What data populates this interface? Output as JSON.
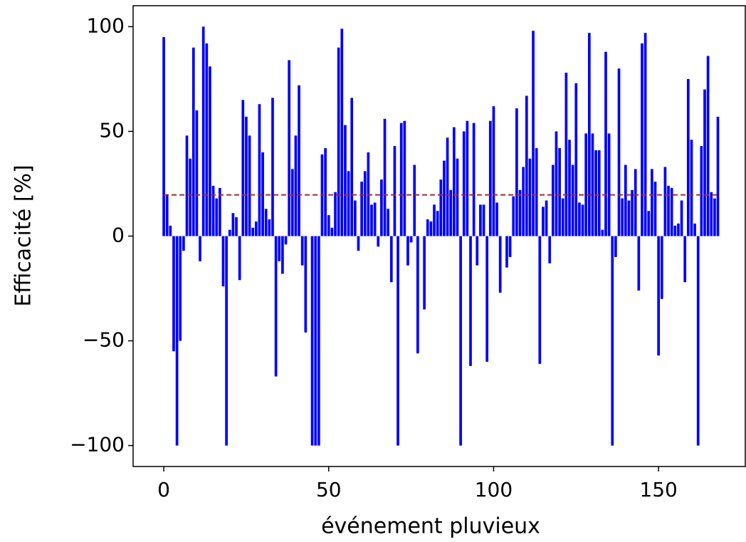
{
  "chart_data": {
    "type": "bar",
    "x": [
      0,
      1,
      2,
      3,
      4,
      5,
      6,
      7,
      8,
      9,
      10,
      11,
      12,
      13,
      14,
      15,
      16,
      17,
      18,
      19,
      20,
      21,
      22,
      23,
      24,
      25,
      26,
      27,
      28,
      29,
      30,
      31,
      32,
      33,
      34,
      35,
      36,
      37,
      38,
      39,
      40,
      41,
      42,
      43,
      44,
      45,
      46,
      47,
      48,
      49,
      50,
      51,
      52,
      53,
      54,
      55,
      56,
      57,
      58,
      59,
      60,
      61,
      62,
      63,
      64,
      65,
      66,
      67,
      68,
      69,
      70,
      71,
      72,
      73,
      74,
      75,
      76,
      77,
      78,
      79,
      80,
      81,
      82,
      83,
      84,
      85,
      86,
      87,
      88,
      89,
      90,
      91,
      92,
      93,
      94,
      95,
      96,
      97,
      98,
      99,
      100,
      101,
      102,
      103,
      104,
      105,
      106,
      107,
      108,
      109,
      110,
      111,
      112,
      113,
      114,
      115,
      116,
      117,
      118,
      119,
      120,
      121,
      122,
      123,
      124,
      125,
      126,
      127,
      128,
      129,
      130,
      131,
      132,
      133,
      134,
      135,
      136,
      137,
      138,
      139,
      140,
      141,
      142,
      143,
      144,
      145,
      146,
      147,
      148,
      149,
      150,
      151,
      152,
      153,
      154,
      155,
      156,
      157,
      158,
      159,
      160,
      161,
      162,
      163,
      164,
      165,
      166,
      167,
      168
    ],
    "values": [
      95,
      20,
      5,
      -55,
      -100,
      -50,
      -7,
      48,
      37,
      90,
      60,
      -12,
      100,
      92,
      81,
      24,
      18,
      23,
      -24,
      -100,
      3,
      11,
      9,
      -21,
      65,
      57,
      48,
      4,
      7,
      63,
      40,
      13,
      8,
      66,
      -67,
      -12,
      -18,
      -4,
      84,
      32,
      48,
      72,
      -14,
      -46,
      0,
      -100,
      -100,
      -100,
      39,
      42,
      10,
      4,
      21,
      90,
      99,
      53,
      31,
      66,
      17,
      -7,
      26,
      31,
      40,
      15,
      16,
      -5,
      27,
      56,
      13,
      -22,
      43,
      -100,
      54,
      55,
      -14,
      -3,
      34,
      -56,
      0,
      -35,
      8,
      7,
      15,
      12,
      27,
      36,
      47,
      22,
      52,
      37,
      -100,
      50,
      55,
      -62,
      54,
      -14,
      15,
      15,
      -60,
      55,
      62,
      16,
      -27,
      0,
      -15,
      -10,
      19,
      61,
      22,
      33,
      67,
      37,
      98,
      42,
      -61,
      14,
      17,
      -13,
      34,
      50,
      42,
      18,
      78,
      46,
      34,
      73,
      16,
      15,
      49,
      97,
      49,
      41,
      41,
      3,
      88,
      49,
      -100,
      -10,
      80,
      18,
      34,
      17,
      22,
      32,
      -26,
      92,
      97,
      12,
      32,
      26,
      -57,
      -30,
      33,
      24,
      23,
      5,
      6,
      17,
      -22,
      75,
      46,
      6,
      -100,
      43,
      70,
      86,
      21,
      18,
      57
    ],
    "color": "#0000ff",
    "hline": {
      "value": 19.7,
      "color": "#a52a2a"
    },
    "xlabel": "événement pluvieux",
    "ylabel": "Efficacité [%]",
    "xlim": [
      -9.3,
      176.3
    ],
    "ylim": [
      -110,
      110
    ],
    "xticks": [
      0,
      50,
      100,
      150
    ],
    "yticks": [
      {
        "value": -100,
        "label": "−100"
      },
      {
        "value": -50,
        "label": "−50"
      },
      0,
      50,
      100
    ]
  }
}
